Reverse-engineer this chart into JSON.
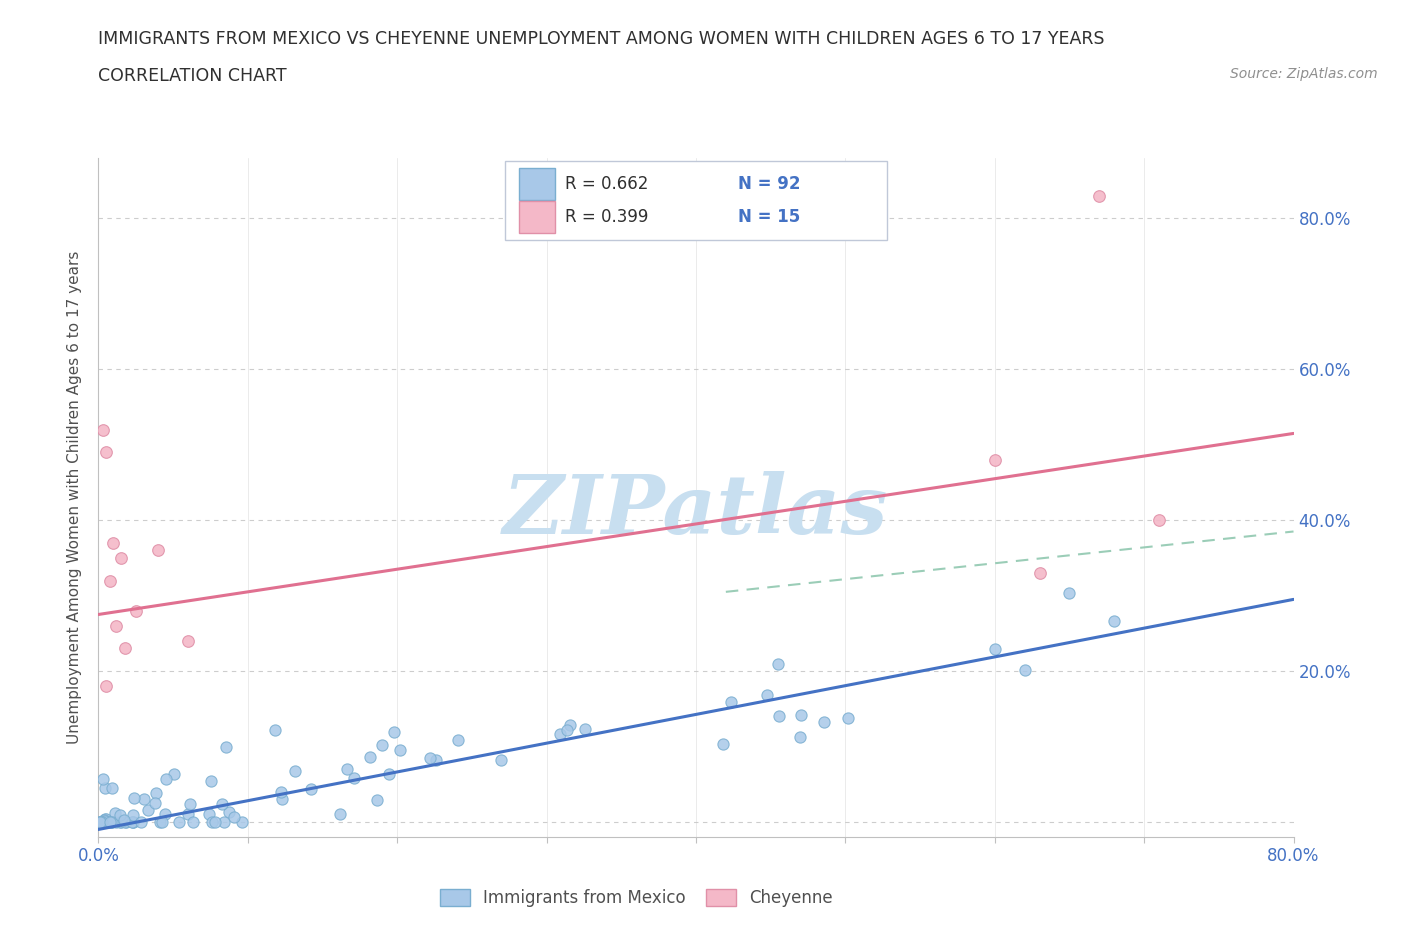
{
  "title_line1": "IMMIGRANTS FROM MEXICO VS CHEYENNE UNEMPLOYMENT AMONG WOMEN WITH CHILDREN AGES 6 TO 17 YEARS",
  "title_line2": "CORRELATION CHART",
  "source_text": "Source: ZipAtlas.com",
  "ylabel": "Unemployment Among Women with Children Ages 6 to 17 years",
  "xlim": [
    0.0,
    0.8
  ],
  "ylim": [
    -0.02,
    0.88
  ],
  "blue_scatter_color": "#a8c8e8",
  "blue_scatter_edge": "#7aaed0",
  "pink_scatter_color": "#f4b8c8",
  "pink_scatter_edge": "#e090a8",
  "blue_line_color": "#4472c4",
  "pink_line_color": "#e07090",
  "dashed_line_color": "#90c8b0",
  "watermark_color": "#c8dff0",
  "background_color": "#ffffff",
  "grid_color": "#c8c8c8",
  "title_color": "#303030",
  "axis_label_color": "#505050",
  "tick_label_color": "#4472c4",
  "legend_border_color": "#c0c8d8",
  "blue_trendline_x": [
    0.0,
    0.8
  ],
  "blue_trendline_y": [
    -0.01,
    0.295
  ],
  "pink_trendline_x": [
    0.0,
    0.8
  ],
  "pink_trendline_y": [
    0.275,
    0.515
  ],
  "dashed_trendline_x": [
    0.42,
    0.8
  ],
  "dashed_trendline_y": [
    0.305,
    0.385
  ]
}
